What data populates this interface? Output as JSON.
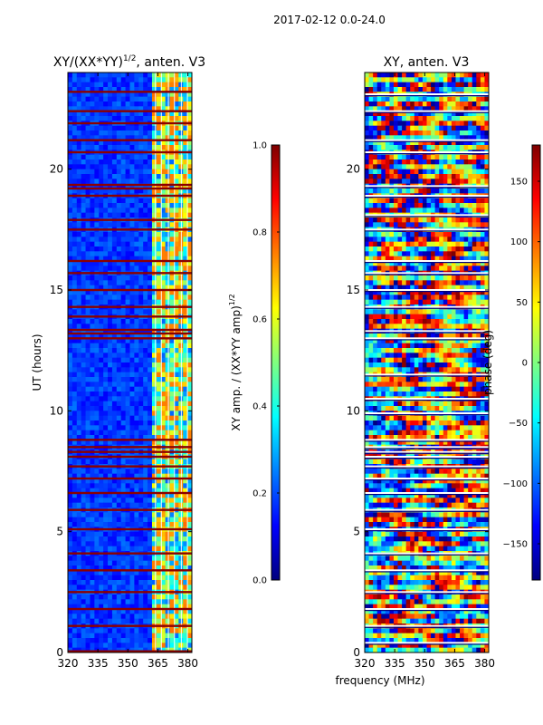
{
  "suptitle": "2017-02-12 0.0-24.0",
  "xlabel": "frequency (MHz)",
  "colors": {
    "cmap": [
      "#00007f",
      "#0000ff",
      "#007fff",
      "#00ffff",
      "#7fff7f",
      "#ffff00",
      "#ff7f00",
      "#ff0000",
      "#7f0000"
    ],
    "flag_line": "#8b0000",
    "gap_line": "#ffffff"
  },
  "chart_data": [
    {
      "type": "heatmap",
      "title_main": "XY/(XX*YY)",
      "title_exp": "1/2",
      "title_tail": ", anten. V3",
      "ylabel": "UT (hours)",
      "xlim": [
        320,
        382
      ],
      "ylim": [
        0,
        24
      ],
      "xticks": [
        "320",
        "335",
        "350",
        "365",
        "380"
      ],
      "yticks": [
        "0",
        "5",
        "10",
        "15",
        "20"
      ],
      "flag_hours": [
        0.05,
        1.1,
        1.8,
        2.5,
        3.4,
        4.1,
        5.1,
        5.9,
        6.6,
        7.2,
        7.7,
        8.1,
        8.3,
        8.5,
        8.8,
        13.0,
        13.2,
        13.35,
        13.9,
        14.3,
        15.0,
        15.7,
        16.2,
        17.5,
        17.9,
        18.9,
        19.2,
        19.35,
        20.7,
        21.2,
        21.9,
        22.4,
        23.2
      ],
      "colorbar": {
        "label_main": "XY amp. / (XX*YY amp)",
        "label_exp": "1/2",
        "range": [
          0,
          1
        ],
        "ticks": [
          "0.0",
          "0.2",
          "0.4",
          "0.6",
          "0.8",
          "1.0"
        ]
      }
    },
    {
      "type": "heatmap",
      "title": "XY, anten. V3",
      "xlim": [
        320,
        382
      ],
      "ylim": [
        0,
        24
      ],
      "xticks": [
        "320",
        "335",
        "350",
        "365",
        "380"
      ],
      "yticks": [
        "0",
        "5",
        "10",
        "15",
        "20"
      ],
      "gap_hours": [
        0.4,
        1.1,
        1.8,
        2.5,
        3.4,
        4.1,
        5.1,
        5.9,
        6.6,
        7.2,
        7.7,
        8.1,
        8.3,
        8.5,
        8.8,
        9.9,
        10.5,
        11.5,
        13.0,
        13.3,
        14.3,
        15.0,
        15.7,
        16.2,
        17.5,
        18.1,
        18.9,
        19.3,
        20.7,
        21.2,
        22.4,
        23.1
      ],
      "colorbar": {
        "label": "phase (deg)",
        "range": [
          -180,
          180
        ],
        "ticks": [
          "-150",
          "-100",
          "-50",
          "0",
          "50",
          "100",
          "150"
        ]
      }
    }
  ]
}
